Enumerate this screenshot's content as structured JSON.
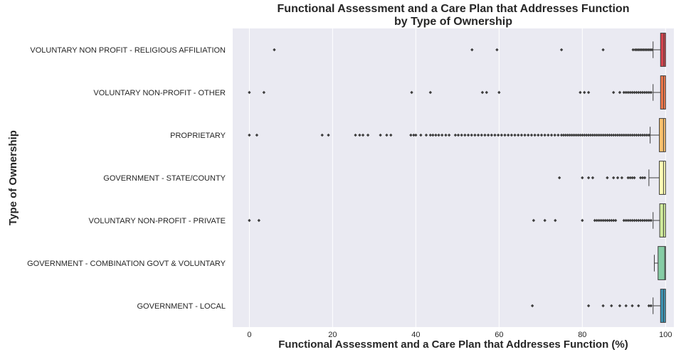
{
  "chart_data": {
    "type": "box",
    "orientation": "horizontal",
    "title_line1": "Functional Assessment and a Care Plan that Addresses Function",
    "title_line2": "by Type of Ownership",
    "xlabel": "Functional Assessment and a Care Plan that Addresses Function (%)",
    "ylabel": "Type of Ownership",
    "xlim": [
      -4,
      102
    ],
    "xticks": [
      0,
      20,
      40,
      60,
      80,
      100
    ],
    "xtick_labels": [
      "0",
      "20",
      "40",
      "60",
      "80",
      "100"
    ],
    "grid": true,
    "background": "#eaeaf2",
    "categories": [
      {
        "name": "VOLUNTARY NON PROFIT - RELIGIOUS AFFILIATION",
        "color": "#d7434e",
        "whisker_low": 97,
        "q1": 98.8,
        "median": 99.6,
        "q3": 100,
        "whisker_high": 100,
        "outliers": [
          6,
          53.5,
          59.5,
          75,
          85,
          92.2,
          92.7,
          93.1,
          93.5,
          93.9,
          94.3,
          94.7,
          95.1,
          95.5,
          95.9,
          96.3,
          96.7
        ]
      },
      {
        "name": "VOLUNTARY NON-PROFIT - OTHER",
        "color": "#f47a4b",
        "whisker_low": 97,
        "q1": 98.8,
        "median": 99.5,
        "q3": 100,
        "whisker_high": 100,
        "outliers": [
          0,
          3.5,
          39,
          43.5,
          56,
          57,
          60,
          79.5,
          80.5,
          81.5,
          87.5,
          89,
          90,
          90.5,
          91,
          91.5,
          92,
          92.5,
          93,
          93.5,
          94,
          94.5,
          95,
          95.5,
          96,
          96.5
        ]
      },
      {
        "name": "PROPRIETARY",
        "color": "#fcc16e",
        "whisker_low": 96.3,
        "q1": 98.5,
        "median": 99.5,
        "q3": 100,
        "whisker_high": 100,
        "outliers": [
          0,
          1.8,
          17.5,
          19,
          25.5,
          26.5,
          27.3,
          28.5,
          31.5,
          33,
          34,
          38.8,
          39.5,
          40,
          41.2,
          42.5,
          43.5,
          44.1,
          44.8,
          45.5,
          46.3,
          47.2,
          48,
          49.5,
          50.2,
          51,
          51.8,
          52.6,
          53.4,
          54.2,
          55,
          55.8,
          56.6,
          57.4,
          58.2,
          59,
          59.8,
          60.6,
          61.4,
          62.2,
          63,
          63.8,
          64.6,
          65.4,
          66.2,
          67,
          67.8,
          68.6,
          69.4,
          70.2,
          71,
          71.8,
          72.6,
          73.4,
          74.2,
          75,
          75.5,
          76,
          76.5,
          77,
          77.5,
          78,
          78.5,
          79,
          79.5,
          80,
          80.5,
          81,
          81.5,
          82,
          82.5,
          83,
          83.5,
          84,
          84.5,
          85,
          85.5,
          86,
          86.5,
          87,
          87.5,
          88,
          88.5,
          89,
          89.5,
          90,
          90.5,
          91,
          91.5,
          92,
          92.5,
          93,
          93.5,
          94,
          94.5,
          95,
          95.5,
          96
        ]
      },
      {
        "name": "GOVERNMENT - STATE/COUNTY",
        "color": "#fefdb6",
        "whisker_low": 96,
        "q1": 98.5,
        "median": 99.5,
        "q3": 100,
        "whisker_high": 100,
        "outliers": [
          74.5,
          80,
          81.5,
          82.5,
          86,
          87.5,
          88.5,
          89.5,
          91,
          91.5,
          92,
          92.5,
          94,
          94.5,
          95
        ]
      },
      {
        "name": "VOLUNTARY NON-PROFIT - PRIVATE",
        "color": "#d1ec9c",
        "whisker_low": 97,
        "q1": 98.6,
        "median": 99.5,
        "q3": 100,
        "whisker_high": 100,
        "outliers": [
          0,
          2.3,
          68.3,
          71,
          73.5,
          80,
          83,
          83.5,
          84,
          84.5,
          85,
          85.5,
          86,
          86.5,
          87,
          87.5,
          88,
          90,
          90.5,
          91,
          91.5,
          92,
          92.5,
          93,
          93.5,
          94,
          94.5,
          95,
          95.5,
          96,
          96.5
        ]
      },
      {
        "name": "GOVERNMENT - COMBINATION GOVT & VOLUNTARY",
        "color": "#86cca5",
        "whisker_low": 97.3,
        "q1": 98.2,
        "median": 99.8,
        "q3": 100,
        "whisker_high": 100,
        "outliers": []
      },
      {
        "name": "GOVERNMENT - LOCAL",
        "color": "#3f96b7",
        "whisker_low": 97,
        "q1": 98.8,
        "median": 99.5,
        "q3": 100,
        "whisker_high": 100,
        "outliers": [
          68,
          81.5,
          85,
          87,
          89,
          90.5,
          92,
          93.5,
          96,
          96.5
        ]
      }
    ]
  }
}
